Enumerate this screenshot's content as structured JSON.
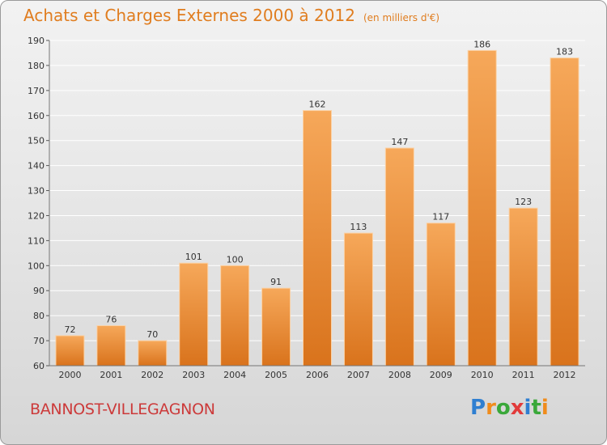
{
  "header": {
    "title": "Achats et Charges Externes 2000 à 2012",
    "subtitle": "(en milliers d'€)"
  },
  "footer": {
    "city": "BANNOST-VILLEGAGNON",
    "brand": "Proxiti",
    "brand_colors": [
      "#2f7fd1",
      "#f08c1c",
      "#3aa83a",
      "#e23b3b",
      "#2f7fd1",
      "#3aa83a",
      "#f08c1c"
    ]
  },
  "colors": {
    "bar_top": "#f6a85a",
    "bar_bottom": "#d9731c",
    "grid": "#ffffff",
    "axis_text": "#333333"
  },
  "chart_data": {
    "type": "bar",
    "categories": [
      "2000",
      "2001",
      "2002",
      "2003",
      "2004",
      "2005",
      "2006",
      "2007",
      "2008",
      "2009",
      "2010",
      "2011",
      "2012"
    ],
    "values": [
      72,
      76,
      70,
      101,
      100,
      91,
      162,
      113,
      147,
      117,
      186,
      123,
      183
    ],
    "ylim": [
      60,
      190
    ],
    "yticks": [
      60,
      70,
      80,
      90,
      100,
      110,
      120,
      130,
      140,
      150,
      160,
      170,
      180,
      190
    ],
    "grid": true,
    "data_labels": true
  }
}
